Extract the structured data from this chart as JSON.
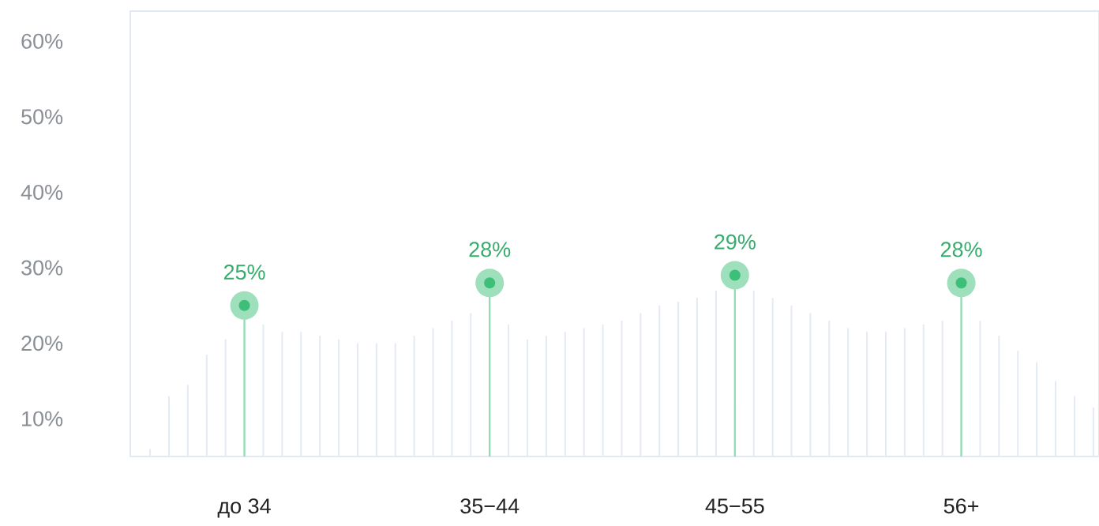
{
  "chart_data": {
    "type": "lollipop",
    "categories": [
      null,
      null,
      null,
      null,
      null,
      "до 34",
      null,
      null,
      null,
      null,
      null,
      null,
      null,
      null,
      null,
      null,
      null,
      null,
      "35−44",
      null,
      null,
      null,
      null,
      null,
      null,
      null,
      null,
      null,
      null,
      null,
      null,
      "45−55",
      null,
      null,
      null,
      null,
      null,
      null,
      null,
      null,
      null,
      null,
      null,
      "56+",
      null,
      null,
      null,
      null,
      null,
      null,
      null
    ],
    "series": [
      {
        "type": "bar",
        "color": "#e4eaf3",
        "values": [
          6,
          13,
          14.5,
          18.5,
          20.5,
          null,
          22.5,
          21.5,
          21.5,
          21,
          20.5,
          20,
          20,
          20,
          21,
          22,
          23,
          24,
          null,
          22.5,
          20.5,
          21,
          21.5,
          22,
          22.5,
          23,
          24,
          25,
          25.5,
          26,
          27,
          null,
          27,
          26,
          25,
          24,
          23,
          22,
          21.5,
          21.5,
          22,
          22.5,
          23,
          null,
          23,
          21,
          19,
          17.5,
          15,
          13,
          11.5
        ]
      },
      {
        "color": "#3dbf7a",
        "values": [
          null,
          null,
          null,
          null,
          null,
          25,
          null,
          null,
          null,
          null,
          null,
          null,
          null,
          null,
          null,
          null,
          null,
          null,
          28,
          null,
          null,
          null,
          null,
          null,
          null,
          null,
          null,
          null,
          null,
          null,
          null,
          29,
          null,
          null,
          null,
          null,
          null,
          null,
          null,
          null,
          null,
          null,
          null,
          28,
          null,
          null,
          null,
          null,
          null,
          null,
          null
        ],
        "value_labels": [
          null,
          null,
          null,
          null,
          null,
          "25%",
          null,
          null,
          null,
          null,
          null,
          null,
          null,
          null,
          null,
          null,
          null,
          null,
          "28%",
          null,
          null,
          null,
          null,
          null,
          null,
          null,
          null,
          null,
          null,
          null,
          null,
          "29%",
          null,
          null,
          null,
          null,
          null,
          null,
          null,
          null,
          null,
          null,
          null,
          "28%",
          null,
          null,
          null,
          null,
          null,
          null,
          null
        ]
      }
    ],
    "ylim": [
      5,
      64
    ],
    "yticks": [
      {
        "value": 10,
        "label": "10%"
      },
      {
        "value": 20,
        "label": "20%"
      },
      {
        "value": 30,
        "label": "30%"
      },
      {
        "value": 40,
        "label": "40%"
      },
      {
        "value": 50,
        "label": "50%"
      },
      {
        "value": 60,
        "label": "60%"
      }
    ],
    "marker": "circle"
  }
}
